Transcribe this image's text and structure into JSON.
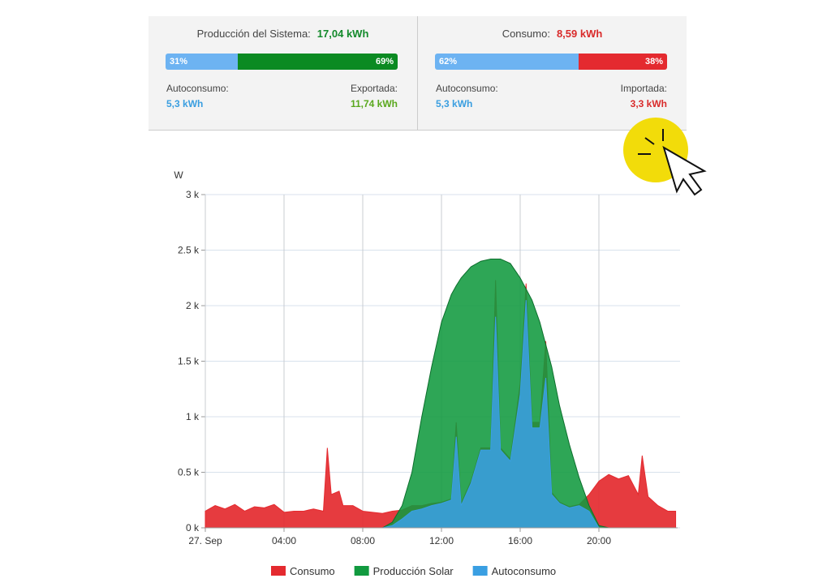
{
  "summary": [
    {
      "title": "Producción del Sistema:",
      "total": "17,04 kWh",
      "total_color": "#138a2b",
      "bar_values": [
        31,
        69
      ],
      "bar_value_labels": [
        "31%",
        "69%"
      ],
      "bar_colors": [
        "#6db3f2",
        "#0b8a22"
      ],
      "left_label": "Autoconsumo:",
      "left_value": "5,3 kWh",
      "left_color": "#3a9ee0",
      "right_label": "Exportada:",
      "right_value": "11,74 kWh",
      "right_color": "#5aa81e"
    },
    {
      "title": "Consumo:",
      "total": "8,59 kWh",
      "total_color": "#d92b2b",
      "bar_values": [
        62,
        38
      ],
      "bar_value_labels": [
        "62%",
        "38%"
      ],
      "bar_colors": [
        "#6db3f2",
        "#e42a2f"
      ],
      "left_label": "Autoconsumo:",
      "left_value": "5,3 kWh",
      "left_color": "#3a9ee0",
      "right_label": "Importada:",
      "right_value": "3,3 kWh",
      "right_color": "#d92b2b"
    }
  ],
  "chart_data": {
    "type": "area",
    "y_label": "W",
    "x": [
      0,
      0.5,
      1,
      1.5,
      2,
      2.5,
      3,
      3.5,
      4,
      4.5,
      5,
      5.5,
      6,
      6.2,
      6.4,
      6.8,
      7,
      7.5,
      8,
      8.5,
      9,
      9.5,
      10,
      10.5,
      11,
      11.5,
      12,
      12.5,
      12.75,
      13,
      13.5,
      14,
      14.5,
      14.75,
      15,
      15.5,
      16,
      16.3,
      16.6,
      17,
      17.3,
      17.6,
      18,
      18.5,
      19,
      19.5,
      20,
      20.5,
      21,
      21.5,
      22,
      22.2,
      22.5,
      23,
      23.5,
      23.9
    ],
    "xlim": [
      0,
      24
    ],
    "xticks": [
      {
        "value": 0,
        "label": "27. Sep"
      },
      {
        "value": 4,
        "label": "04:00"
      },
      {
        "value": 8,
        "label": "08:00"
      },
      {
        "value": 12,
        "label": "12:00"
      },
      {
        "value": 16,
        "label": "16:00"
      },
      {
        "value": 20,
        "label": "20:00"
      }
    ],
    "ylim": [
      0,
      3000
    ],
    "yticks": [
      {
        "value": 0,
        "label": "0 k"
      },
      {
        "value": 500,
        "label": "0.5 k"
      },
      {
        "value": 1000,
        "label": "1 k"
      },
      {
        "value": 1500,
        "label": "1.5 k"
      },
      {
        "value": 2000,
        "label": "2 k"
      },
      {
        "value": 2500,
        "label": "2.5 k"
      },
      {
        "value": 3000,
        "label": "3 k"
      }
    ],
    "grid": true,
    "series": [
      {
        "name": "Consumo",
        "color": "#e42a2f",
        "values": [
          150,
          200,
          170,
          210,
          150,
          190,
          180,
          210,
          140,
          150,
          150,
          170,
          150,
          720,
          300,
          330,
          200,
          200,
          150,
          140,
          130,
          150,
          160,
          200,
          200,
          220,
          230,
          260,
          950,
          220,
          420,
          720,
          720,
          2230,
          720,
          620,
          1300,
          2200,
          950,
          950,
          1680,
          320,
          230,
          190,
          210,
          300,
          420,
          480,
          440,
          470,
          300,
          650,
          280,
          200,
          150,
          150
        ]
      },
      {
        "name": "Producción Solar",
        "color": "#119a3f",
        "values": [
          0,
          0,
          0,
          0,
          0,
          0,
          0,
          0,
          0,
          0,
          0,
          0,
          0,
          0,
          0,
          0,
          0,
          0,
          0,
          0,
          0,
          50,
          200,
          500,
          1000,
          1450,
          1850,
          2100,
          2180,
          2250,
          2350,
          2400,
          2420,
          2420,
          2420,
          2380,
          2250,
          2150,
          2050,
          1850,
          1650,
          1450,
          1100,
          750,
          450,
          200,
          20,
          0,
          0,
          0,
          0,
          0,
          0,
          0,
          0,
          0
        ]
      },
      {
        "name": "Autoconsumo",
        "color": "#3a9fe2",
        "values": [
          0,
          0,
          0,
          0,
          0,
          0,
          0,
          0,
          0,
          0,
          0,
          0,
          0,
          0,
          0,
          0,
          0,
          0,
          0,
          0,
          0,
          20,
          80,
          150,
          170,
          200,
          220,
          250,
          820,
          200,
          400,
          700,
          700,
          1900,
          700,
          600,
          1200,
          2050,
          900,
          900,
          1350,
          300,
          220,
          180,
          200,
          150,
          0,
          0,
          0,
          0,
          0,
          0,
          0,
          0,
          0,
          0
        ]
      }
    ]
  }
}
